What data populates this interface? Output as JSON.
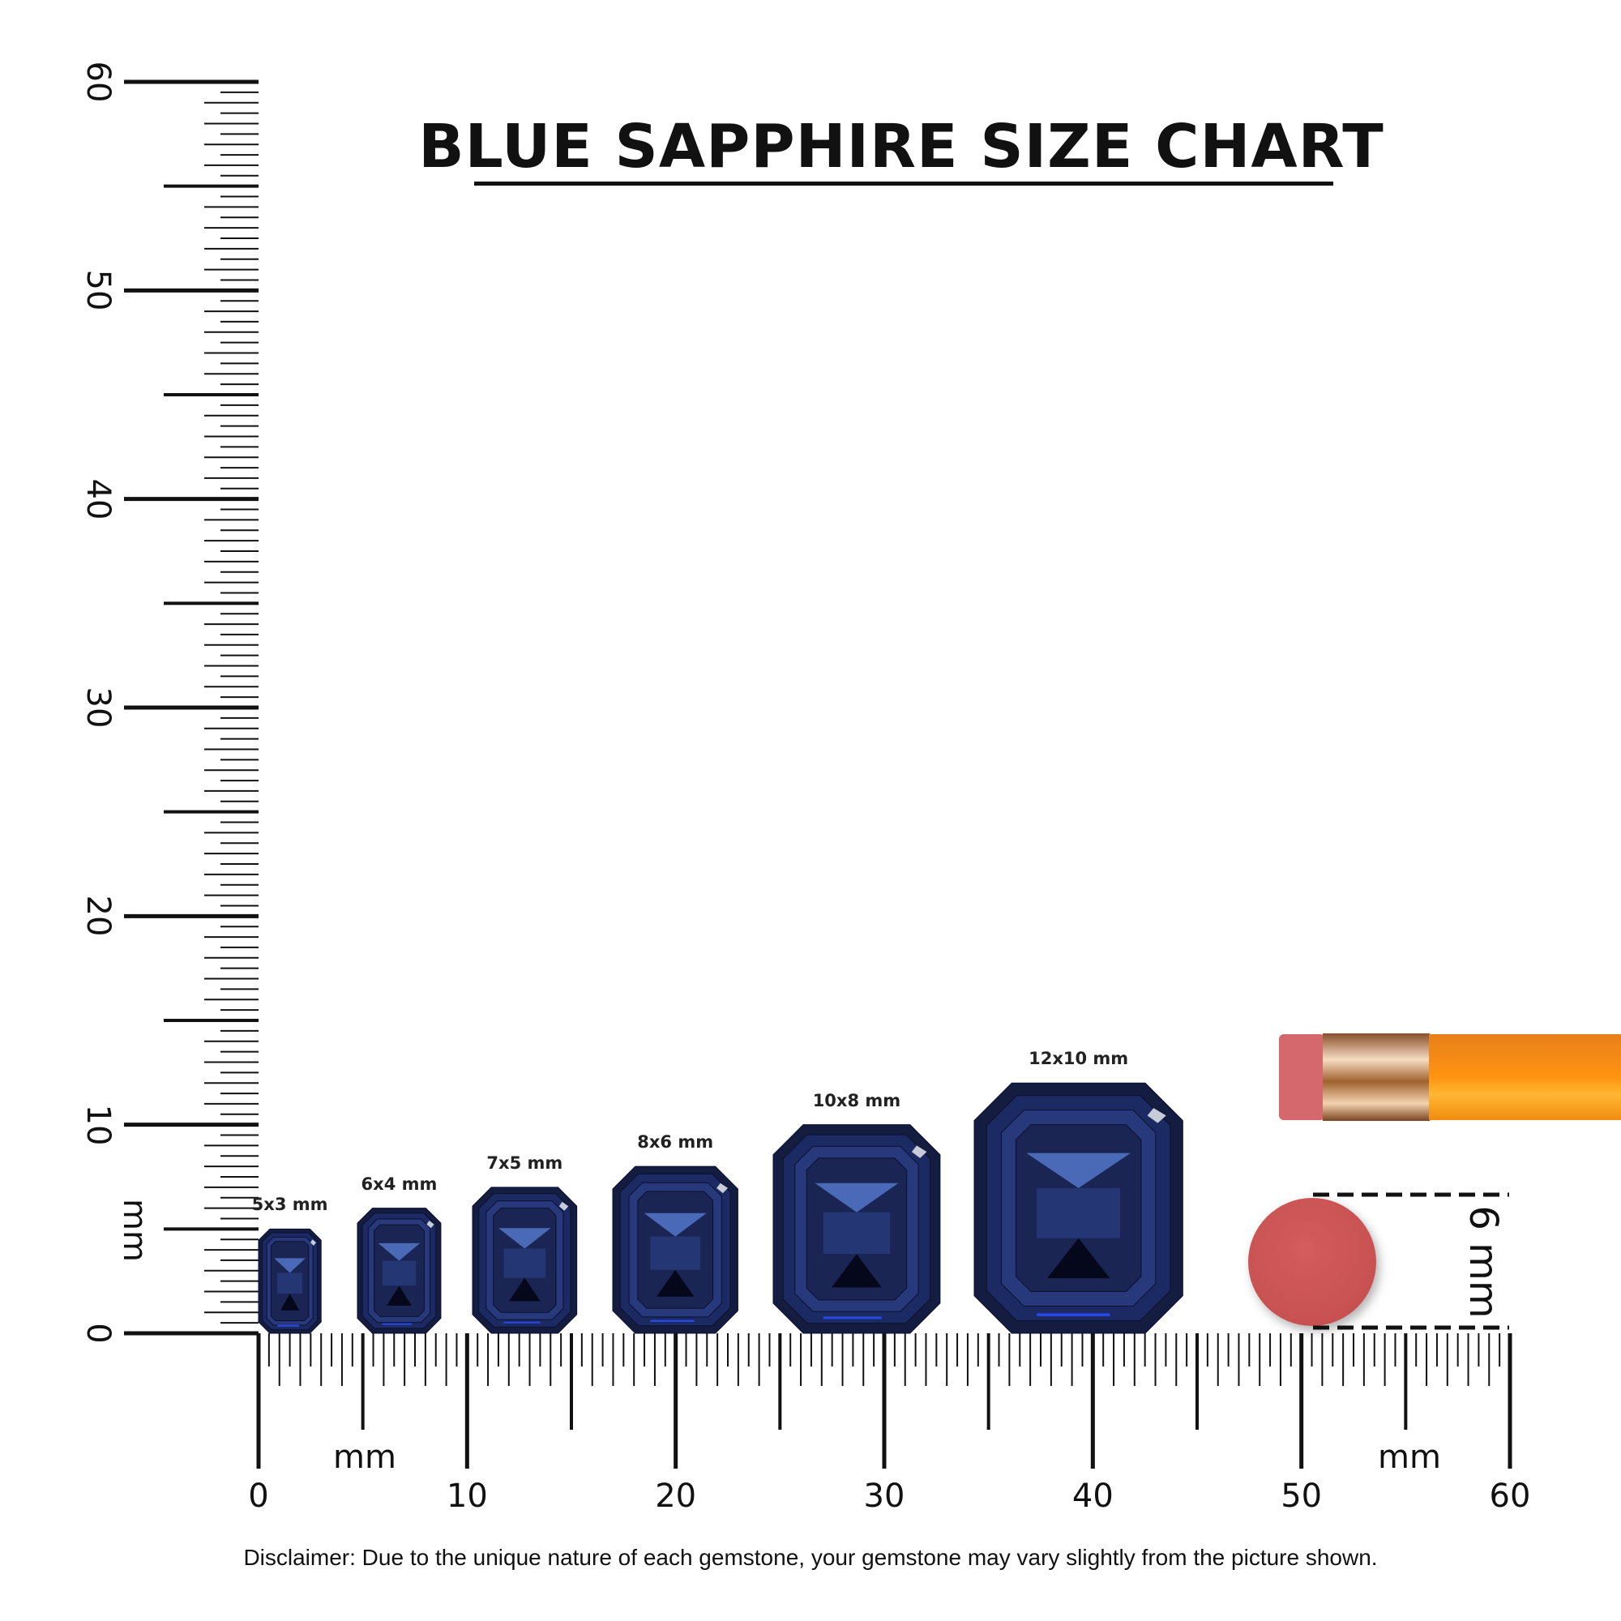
{
  "title": "BLUE SAPPHIRE SIZE CHART",
  "disclaimer": "Disclaimer: Due to the unique nature of each gemstone, your gemstone may vary slightly from the picture shown.",
  "vertical_ruler": {
    "unit": "mm",
    "range_mm": [
      0,
      60
    ],
    "tick_labels": [
      "0",
      "10",
      "20",
      "30",
      "40",
      "50",
      "60"
    ]
  },
  "horizontal_ruler": {
    "unit": "mm",
    "range_mm": [
      0,
      60
    ],
    "tick_labels": [
      "0",
      "10",
      "20",
      "30",
      "40",
      "50",
      "60"
    ],
    "unit_labels": [
      "mm",
      "mm"
    ]
  },
  "gems": [
    {
      "label": "5x3 mm",
      "length_mm": 5,
      "width_mm": 3
    },
    {
      "label": "6x4 mm",
      "length_mm": 6,
      "width_mm": 4
    },
    {
      "label": "7x5 mm",
      "length_mm": 7,
      "width_mm": 5
    },
    {
      "label": "8x6 mm",
      "length_mm": 8,
      "width_mm": 6
    },
    {
      "label": "10x8 mm",
      "length_mm": 10,
      "width_mm": 8
    },
    {
      "label": "12x10 mm",
      "length_mm": 12,
      "width_mm": 10
    }
  ],
  "reference": {
    "eraser_label": "6 mm",
    "eraser_diameter_mm": 6,
    "pencil_colors": {
      "eraser": "#d4686c",
      "ferrule": "#c98a5c",
      "body": "#f7941d"
    },
    "eraser_color": "#d05a5a"
  },
  "colors": {
    "gem_dark": "#141c40",
    "gem_mid": "#27397a",
    "gem_light": "#4a6ab8",
    "ink": "#111111"
  }
}
